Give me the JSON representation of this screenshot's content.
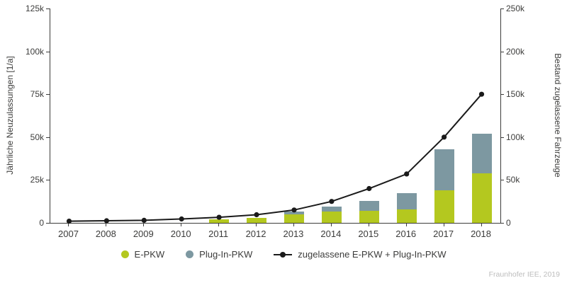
{
  "chart_data": {
    "type": "bar+line",
    "categories": [
      "2007",
      "2008",
      "2009",
      "2010",
      "2011",
      "2012",
      "2013",
      "2014",
      "2015",
      "2016",
      "2017",
      "2018"
    ],
    "series": [
      {
        "name": "E-PKW",
        "type": "bar",
        "axis": "left",
        "color": "#b4c81f",
        "values": [
          0,
          0,
          0,
          100,
          2100,
          2900,
          5000,
          6500,
          7000,
          8000,
          19000,
          29000
        ]
      },
      {
        "name": "Plug-In-PKW",
        "type": "bar",
        "axis": "left",
        "color": "#7d98a1",
        "values": [
          0,
          0,
          0,
          0,
          0,
          0,
          1500,
          3000,
          6000,
          9500,
          24000,
          23000
        ]
      },
      {
        "name": "zugelassene E-PKW + Plug-In-PKW",
        "type": "line",
        "axis": "right",
        "color": "#1a1a1a",
        "values": [
          2000,
          2500,
          3000,
          4500,
          6500,
          9500,
          15000,
          25000,
          40000,
          57000,
          100000,
          150000
        ]
      }
    ],
    "left_axis": {
      "label": "Jährliche Neuzulassungen [1/a]",
      "ticks": [
        "0",
        "25k",
        "50k",
        "75k",
        "100k",
        "125k"
      ],
      "min": 0,
      "max": 125000
    },
    "right_axis": {
      "label": "Bestand zugelassene Fahrzeuge",
      "ticks": [
        "0",
        "50k",
        "100k",
        "150k",
        "200k",
        "250k"
      ],
      "min": 0,
      "max": 250000
    },
    "grid": false,
    "legend_position": "bottom"
  },
  "footer": {
    "credit": "Fraunhofer IEE, 2019"
  }
}
